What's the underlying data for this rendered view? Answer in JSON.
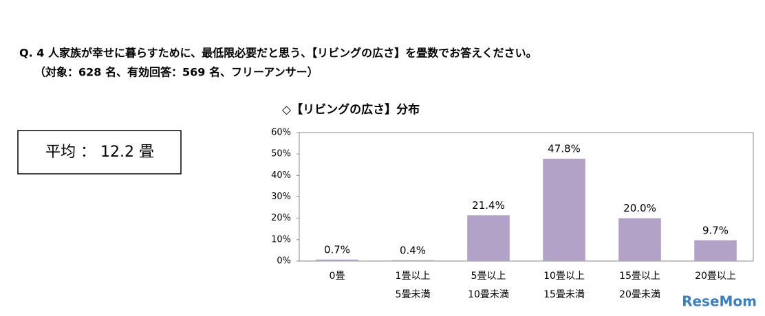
{
  "header": {
    "question": "Q. 4 人家族が幸せに暮らすために、最低限必要だと思う、【リビングの広さ】を畳数でお答えください。",
    "subtitle": "（対象：628 名、有効回答：569 名、フリーアンサー）"
  },
  "average": "平均 ： 12.2 畳",
  "watermark": "ReseMom",
  "chart_data": {
    "type": "bar",
    "title": "◇【リビングの広さ】分布",
    "categories": [
      "0畳",
      "1畳以上\n5畳未満",
      "5畳以上\n10畳未満",
      "10畳以上\n15畳未満",
      "15畳以上\n20畳未満",
      "20畳以上"
    ],
    "values": [
      0.7,
      0.4,
      21.4,
      47.8,
      20.0,
      9.7
    ],
    "value_labels": [
      "0.7%",
      "0.4%",
      "21.4%",
      "47.8%",
      "20.0%",
      "9.7%"
    ],
    "color": "#b3a2c7",
    "ylim": [
      0,
      60
    ],
    "yticks": [
      {
        "value": 0,
        "label": "0%"
      },
      {
        "value": 10,
        "label": "10%"
      },
      {
        "value": 20,
        "label": "20%"
      },
      {
        "value": 30,
        "label": "30%"
      },
      {
        "value": 40,
        "label": "40%"
      },
      {
        "value": 50,
        "label": "50%"
      },
      {
        "value": 60,
        "label": "60%"
      }
    ],
    "grid": false
  }
}
